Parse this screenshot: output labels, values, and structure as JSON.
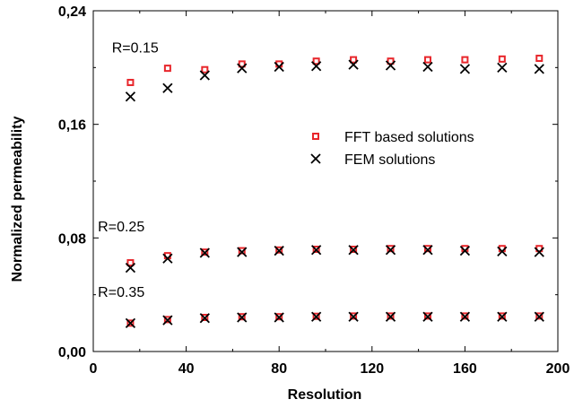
{
  "chart_data": {
    "type": "scatter",
    "title": "",
    "xlabel": "Resolution",
    "ylabel": "Normalized permeability",
    "xlim": [
      0,
      200
    ],
    "ylim": [
      0.0,
      0.24
    ],
    "x_ticks": [
      0,
      40,
      80,
      120,
      160,
      200
    ],
    "x_tick_labels": [
      "0",
      "40",
      "80",
      "120",
      "160",
      "200"
    ],
    "y_ticks": [
      0.0,
      0.08,
      0.16,
      0.24
    ],
    "y_tick_labels": [
      "0,00",
      "0,08",
      "0,16",
      "0,24"
    ],
    "grid": false,
    "legend_position": "center-right",
    "colors": {
      "fft": "#e8262b",
      "fem": "#000000"
    },
    "annotations": [
      {
        "text": "R=0.15",
        "x": 8,
        "y": 0.2105
      },
      {
        "text": "R=0.25",
        "x": 2,
        "y": 0.0845
      },
      {
        "text": "R=0.35",
        "x": 2,
        "y": 0.0385
      }
    ],
    "series": [
      {
        "name": "FFT based solutions",
        "marker": "square",
        "groups": [
          {
            "label": "R=0.15",
            "x": [
              16,
              32,
              48,
              64,
              80,
              96,
              112,
              128,
              144,
              160,
              176,
              192
            ],
            "y": [
              0.1895,
              0.1995,
              0.1985,
              0.2025,
              0.2025,
              0.2045,
              0.2055,
              0.2045,
              0.2055,
              0.2055,
              0.206,
              0.2065
            ]
          },
          {
            "label": "R=0.25",
            "x": [
              16,
              32,
              48,
              64,
              80,
              96,
              112,
              128,
              144,
              160,
              176,
              192
            ],
            "y": [
              0.0625,
              0.0675,
              0.07,
              0.071,
              0.0715,
              0.072,
              0.072,
              0.0725,
              0.0725,
              0.0725,
              0.0725,
              0.0725
            ]
          },
          {
            "label": "R=0.35",
            "x": [
              16,
              32,
              48,
              64,
              80,
              96,
              112,
              128,
              144,
              160,
              176,
              192
            ],
            "y": [
              0.02,
              0.0225,
              0.024,
              0.0245,
              0.0245,
              0.0248,
              0.025,
              0.025,
              0.025,
              0.025,
              0.025,
              0.025
            ]
          }
        ]
      },
      {
        "name": "FEM solutions",
        "marker": "x",
        "groups": [
          {
            "label": "R=0.15",
            "x": [
              16,
              32,
              48,
              64,
              80,
              96,
              112,
              128,
              144,
              160,
              176,
              192
            ],
            "y": [
              0.1795,
              0.1855,
              0.1945,
              0.1995,
              0.2005,
              0.201,
              0.202,
              0.2015,
              0.2005,
              0.199,
              0.2,
              0.199
            ]
          },
          {
            "label": "R=0.25",
            "x": [
              16,
              32,
              48,
              64,
              80,
              96,
              112,
              128,
              144,
              160,
              176,
              192
            ],
            "y": [
              0.059,
              0.0655,
              0.0695,
              0.07,
              0.071,
              0.0715,
              0.0715,
              0.0715,
              0.0715,
              0.071,
              0.0705,
              0.07
            ]
          },
          {
            "label": "R=0.35",
            "x": [
              16,
              32,
              48,
              64,
              80,
              96,
              112,
              128,
              144,
              160,
              176,
              192
            ],
            "y": [
              0.02,
              0.022,
              0.0235,
              0.024,
              0.024,
              0.0245,
              0.0245,
              0.0245,
              0.0245,
              0.0245,
              0.0245,
              0.0245
            ]
          }
        ]
      }
    ]
  }
}
